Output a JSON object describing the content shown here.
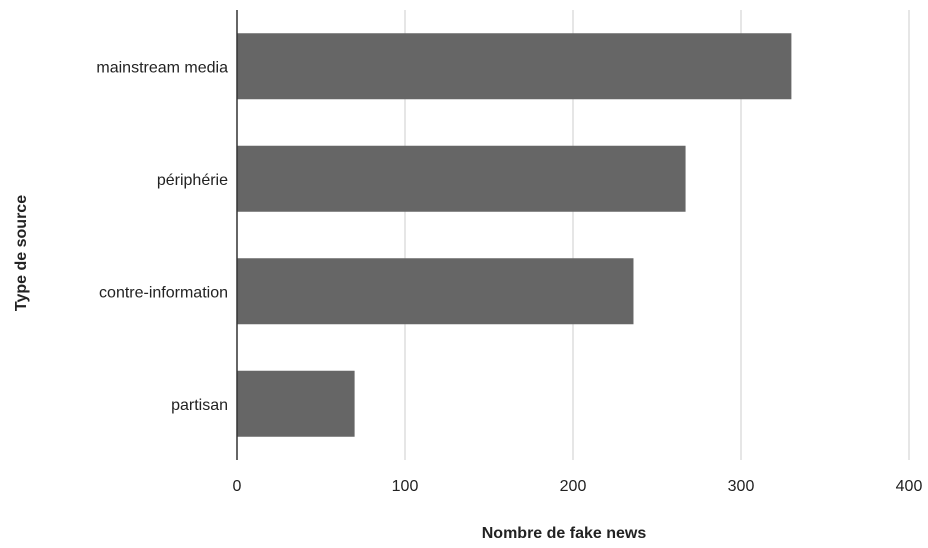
{
  "chart_data": {
    "type": "bar",
    "orientation": "horizontal",
    "categories": [
      "mainstream media",
      "périphérie",
      "contre-information",
      "partisan"
    ],
    "values": [
      330,
      267,
      236,
      70
    ],
    "xlabel": "Nombre de fake news",
    "ylabel": "Type de source",
    "xlim": [
      0,
      400
    ],
    "xticks": [
      "0",
      "100",
      "200",
      "300",
      "400"
    ],
    "grid": "vertical",
    "legend": "none",
    "colors": {
      "bar": "#666666",
      "grid": "#cccccc",
      "axis": "#333333"
    }
  }
}
